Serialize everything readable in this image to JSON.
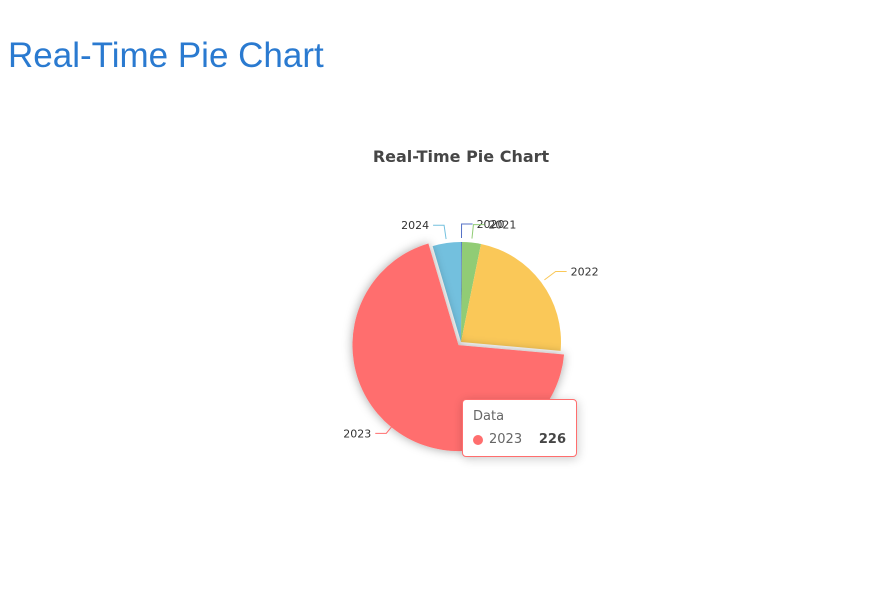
{
  "page": {
    "heading": "Real-Time Pie Chart"
  },
  "colors": {
    "heading": "#2a7ad0",
    "2020": "#5470c6",
    "2021": "#91cc75",
    "2022": "#fac858",
    "2023": "#ff6e6e",
    "2024": "#73c0de"
  },
  "chart_data": {
    "type": "pie",
    "title": "Real-Time Pie Chart",
    "series": [
      {
        "name": "Data",
        "data": [
          {
            "name": "2020",
            "value": 0.5
          },
          {
            "name": "2021",
            "value": 10
          },
          {
            "name": "2022",
            "value": 76
          },
          {
            "name": "2023",
            "value": 226
          },
          {
            "name": "2024",
            "value": 15
          }
        ]
      }
    ],
    "highlighted": "2023",
    "legend": "none"
  },
  "tooltip": {
    "title": "Data",
    "name": "2023",
    "value": "226"
  }
}
